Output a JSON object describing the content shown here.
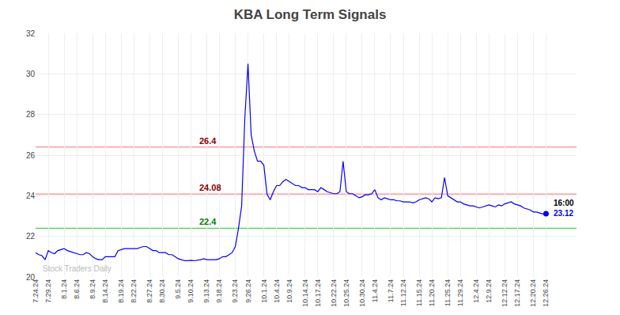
{
  "chart_data": {
    "type": "line",
    "title": "KBA Long Term Signals",
    "categories": [
      "7.24.24",
      null,
      null,
      null,
      "7.29.24",
      null,
      null,
      null,
      null,
      "8.1.24",
      null,
      null,
      null,
      "8.6.24",
      null,
      null,
      null,
      null,
      "8.9.24",
      null,
      null,
      null,
      "8.14.24",
      null,
      null,
      null,
      null,
      "8.19.24",
      null,
      null,
      null,
      "8.22.24",
      null,
      null,
      null,
      null,
      "8.27.24",
      null,
      null,
      null,
      "8.30.24",
      null,
      null,
      null,
      null,
      "9.5.24",
      null,
      null,
      null,
      "9.10.24",
      null,
      null,
      null,
      null,
      "9.13.24",
      null,
      null,
      null,
      "9.18.24",
      null,
      null,
      null,
      null,
      "9.23.24",
      null,
      null,
      null,
      "9.26.24",
      null,
      null,
      null,
      null,
      "10.1.24",
      null,
      null,
      null,
      "10.4.24",
      null,
      null,
      null,
      "10.9.24",
      null,
      null,
      null,
      null,
      "10.14.24",
      null,
      null,
      null,
      "10.17.24",
      null,
      null,
      null,
      null,
      "10.22.24",
      null,
      null,
      null,
      "10.25.24",
      null,
      null,
      null,
      null,
      "10.30.24",
      null,
      null,
      null,
      "11.4.24",
      null,
      null,
      null,
      null,
      "11.7.24",
      null,
      null,
      null,
      "11.12.24",
      null,
      null,
      null,
      null,
      "11.15.24",
      null,
      null,
      null,
      "11.20.24",
      null,
      null,
      null,
      null,
      "11.25.24",
      null,
      null,
      null,
      "11.29.24",
      null,
      null,
      null,
      null,
      "12.4.24",
      null,
      null,
      null,
      "12.9.24",
      null,
      null,
      null,
      null,
      "12.12.24",
      null,
      null,
      null,
      "12.17.24",
      null,
      null,
      null,
      null,
      "12.20.24",
      null,
      null,
      null,
      "12.26.24"
    ],
    "values": [
      21.2,
      21.1,
      21.05,
      20.85,
      21.3,
      21.2,
      21.15,
      21.3,
      21.35,
      21.4,
      21.3,
      21.25,
      21.2,
      21.15,
      21.1,
      21.1,
      21.2,
      21.15,
      21.0,
      20.9,
      20.85,
      20.85,
      21.0,
      21.0,
      21.0,
      21.0,
      21.3,
      21.35,
      21.4,
      21.4,
      21.4,
      21.4,
      21.4,
      21.45,
      21.5,
      21.5,
      21.4,
      21.3,
      21.3,
      21.2,
      21.2,
      21.2,
      21.1,
      21.1,
      21.0,
      20.9,
      20.85,
      20.8,
      20.8,
      20.82,
      20.8,
      20.82,
      20.85,
      20.9,
      20.85,
      20.85,
      20.85,
      20.85,
      20.9,
      21.0,
      21.0,
      21.1,
      21.2,
      21.5,
      22.4,
      23.5,
      27.8,
      30.5,
      27.0,
      26.2,
      25.7,
      25.7,
      25.5,
      24.08,
      23.8,
      24.2,
      24.5,
      24.5,
      24.7,
      24.8,
      24.7,
      24.6,
      24.5,
      24.5,
      24.4,
      24.4,
      24.3,
      24.3,
      24.3,
      24.2,
      24.4,
      24.3,
      24.2,
      24.15,
      24.1,
      24.1,
      24.2,
      25.7,
      24.2,
      24.1,
      24.1,
      24.0,
      23.9,
      23.95,
      24.05,
      24.05,
      24.1,
      24.3,
      23.9,
      23.8,
      23.9,
      23.85,
      23.8,
      23.8,
      23.75,
      23.75,
      23.7,
      23.7,
      23.7,
      23.65,
      23.7,
      23.8,
      23.85,
      23.9,
      23.85,
      23.7,
      23.9,
      23.85,
      23.9,
      24.9,
      24.0,
      23.9,
      23.8,
      23.7,
      23.7,
      23.6,
      23.55,
      23.5,
      23.5,
      23.45,
      23.4,
      23.45,
      23.5,
      23.55,
      23.5,
      23.45,
      23.55,
      23.5,
      23.6,
      23.65,
      23.7,
      23.6,
      23.55,
      23.5,
      23.4,
      23.35,
      23.3,
      23.2,
      23.2,
      23.15,
      23.1,
      23.12
    ],
    "color": "#0000ff",
    "ylim": [
      20,
      32
    ],
    "yticks": [
      20,
      22,
      24,
      26,
      28,
      30,
      32
    ],
    "grid": true,
    "hlines": [
      {
        "value": 26.4,
        "color": "#f4a0a0",
        "label": "26.4",
        "label_color": "#8b0000"
      },
      {
        "value": 24.08,
        "color": "#f4a0a0",
        "label": "24.08",
        "label_color": "#8b0000"
      },
      {
        "value": 22.4,
        "color": "#66cc66",
        "label": "22.4",
        "label_color": "#008000"
      }
    ],
    "end_labels": [
      {
        "text": "16:00",
        "color": "#000000"
      },
      {
        "text": "23.12",
        "color": "#0000ff"
      }
    ],
    "watermark": {
      "text": "Stock Traders Daily",
      "color": "#bbbbbb"
    }
  }
}
